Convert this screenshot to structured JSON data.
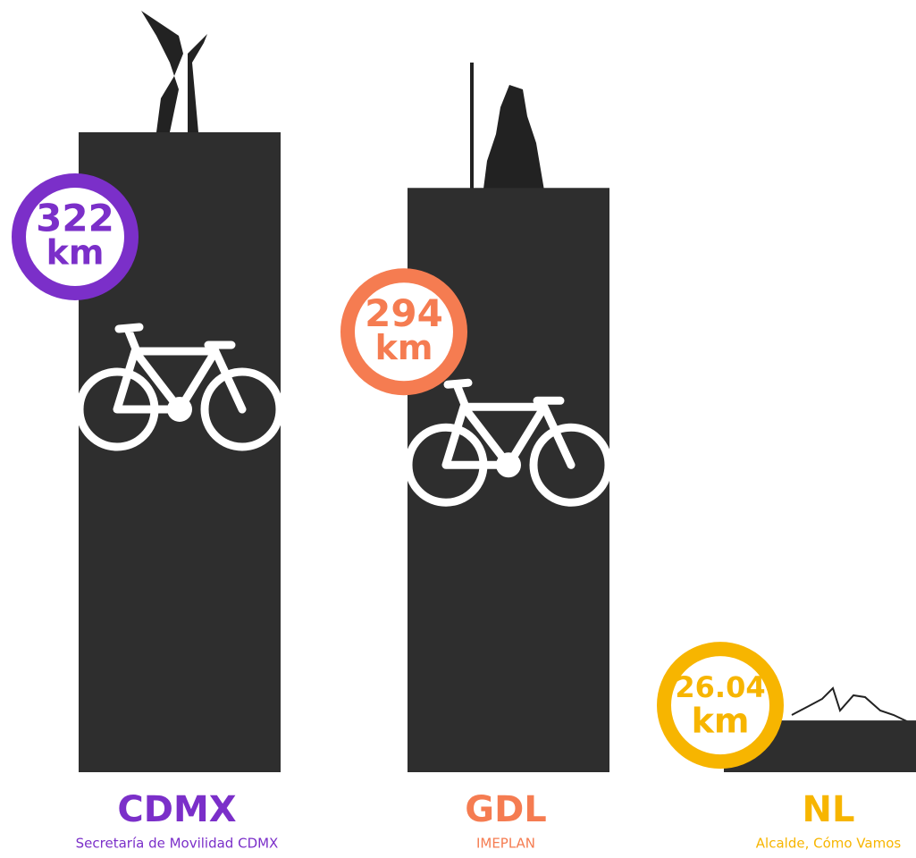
{
  "chart_data": {
    "type": "bar",
    "categories": [
      "CDMX",
      "GDL",
      "NL"
    ],
    "values": [
      322,
      294,
      26.04
    ],
    "unit": "km",
    "sources": [
      "Secretaría de Movilidad CDMX",
      "IMEPLAN",
      "Alcalde, Cómo Vamos"
    ],
    "colors": [
      "#7b2fc9",
      "#f57c51",
      "#f7b500"
    ],
    "bar_color": "#2e2e2e"
  }
}
